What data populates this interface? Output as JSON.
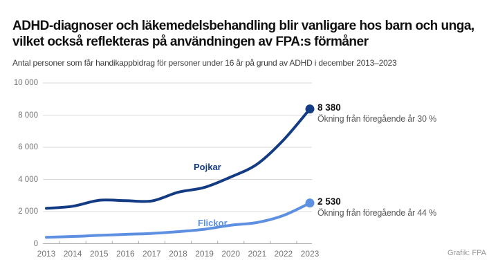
{
  "header": {
    "title_line1": "ADHD-diagnoser och läkemedelsbehandling blir vanligare hos barn och unga,",
    "title_line2": "vilket också reflekteras på användningen av FPA:s förmåner",
    "subtitle": "Antal personer som får handikappbidrag för personer under 16 år på grund av ADHD i december 2013–2023"
  },
  "chart_data": {
    "type": "line",
    "title": "Antal personer som får handikappbidrag för personer under 16 år på grund av ADHD i december 2013–2023",
    "x_labels": [
      "2013",
      "2014",
      "2015",
      "2016",
      "2017",
      "2018",
      "2019",
      "2020",
      "2021",
      "2022",
      "2023"
    ],
    "ylim": [
      0,
      10000
    ],
    "ytick_labels": [
      "0",
      "2 000",
      "4 000",
      "6 000",
      "8 000",
      "10 000"
    ],
    "grid": true,
    "legend_position": "inline-labels",
    "series": [
      {
        "name": "Pojkar",
        "color": "#143c84",
        "values": [
          2200,
          2330,
          2700,
          2680,
          2660,
          3200,
          3500,
          4150,
          4950,
          6450,
          8380
        ],
        "end_value_label": "8 380",
        "end_note": "Ökning från föregående år 30 %"
      },
      {
        "name": "Flickor",
        "color": "#5e90e2",
        "values": [
          400,
          450,
          520,
          580,
          640,
          750,
          900,
          1150,
          1320,
          1760,
          2530
        ],
        "end_value_label": "2 530",
        "end_note": "Ökning från föregående år 44 %"
      }
    ]
  },
  "colors": {
    "gridline": "#d9d9d9",
    "axis": "#ababab",
    "axis_text": "#737373"
  },
  "credit": "Grafik: FPA"
}
